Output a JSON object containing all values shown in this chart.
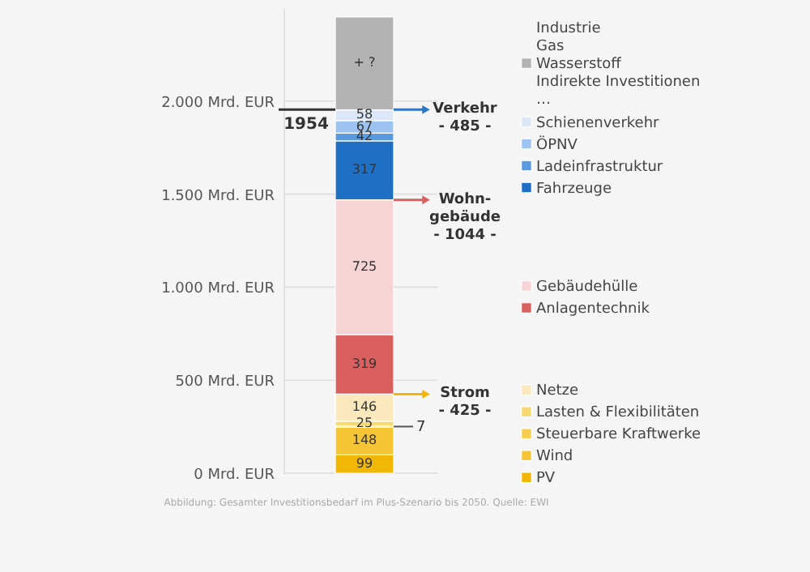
{
  "chart_data": {
    "type": "bar",
    "stacked": true,
    "categories": [
      null
    ],
    "ylim": [
      0,
      2500
    ],
    "yticks": [
      {
        "value": 0,
        "label": "0 Mrd. EUR"
      },
      {
        "value": 500,
        "label": "500 Mrd. EUR"
      },
      {
        "value": 1000,
        "label": "1.000 Mrd. EUR"
      },
      {
        "value": 1500,
        "label": "1.500 Mrd. EUR"
      },
      {
        "value": 2000,
        "label": "2.000 Mrd. EUR"
      }
    ],
    "grid": "y",
    "legend": "right",
    "tick_labels": "y",
    "series": [
      {
        "name": "PV",
        "color": "#f2b705",
        "values": [
          99
        ],
        "value_labels": [
          "99"
        ]
      },
      {
        "name": "Wind",
        "color": "#f5c535",
        "values": [
          148
        ],
        "value_labels": [
          "148"
        ]
      },
      {
        "name": "Steuerbare Kraftwerke",
        "color": "#f6cd4f",
        "values": [
          7
        ],
        "value_labels": [
          "7"
        ]
      },
      {
        "name": "Lasten & Flexibilitäten",
        "color": "#f8d871",
        "values": [
          25
        ],
        "value_labels": [
          "25"
        ]
      },
      {
        "name": "Netze",
        "color": "#fbe9bd",
        "values": [
          146
        ],
        "value_labels": [
          "146"
        ]
      },
      {
        "name": "Anlagentechnik",
        "color": "#d9605f",
        "values": [
          319
        ],
        "value_labels": [
          "319"
        ]
      },
      {
        "name": "Gebäudehülle",
        "color": "#f6d3d5",
        "values": [
          725
        ],
        "value_labels": [
          "725"
        ]
      },
      {
        "name": "Fahrzeuge",
        "color": "#1f6fc5",
        "values": [
          317
        ],
        "value_labels": [
          "317"
        ]
      },
      {
        "name": "Ladeinfrastruktur",
        "color": "#5a9be0",
        "values": [
          42
        ],
        "value_labels": [
          "42"
        ]
      },
      {
        "name": "ÖPNV",
        "color": "#9dc3f0",
        "values": [
          67
        ],
        "value_labels": [
          "67"
        ]
      },
      {
        "name": "Schienenverkehr",
        "color": "#dbe7f7",
        "values": [
          58
        ],
        "value_labels": [
          "58"
        ]
      },
      {
        "name": "Industrie\nGas\nWasserstoff\nIndirekte Investitionen\n…",
        "color": "#b3b3b3",
        "values": [
          500
        ],
        "value_labels": [
          "+ ?"
        ]
      }
    ],
    "ref_lines": [
      {
        "axis": "y",
        "value": 1954,
        "label": "1954",
        "color": "#333333",
        "line_style": "solid"
      },
      {
        "axis": "y",
        "value": 1954,
        "label": "Verkehr\n- 485 -",
        "color": "#2e75c6"
      },
      {
        "axis": "y",
        "value": 1469,
        "label": "Wohn-\ngebäude\n- 1044 -",
        "color": "#d9605f"
      },
      {
        "axis": "y",
        "value": 425,
        "label": "Strom\n- 425 -",
        "color": "#f2b705"
      }
    ],
    "annotations": [
      "Abbildung: Gesamter Investitionsbedarf im Plus-Szenario bis 2050. Quelle: EWI"
    ]
  }
}
